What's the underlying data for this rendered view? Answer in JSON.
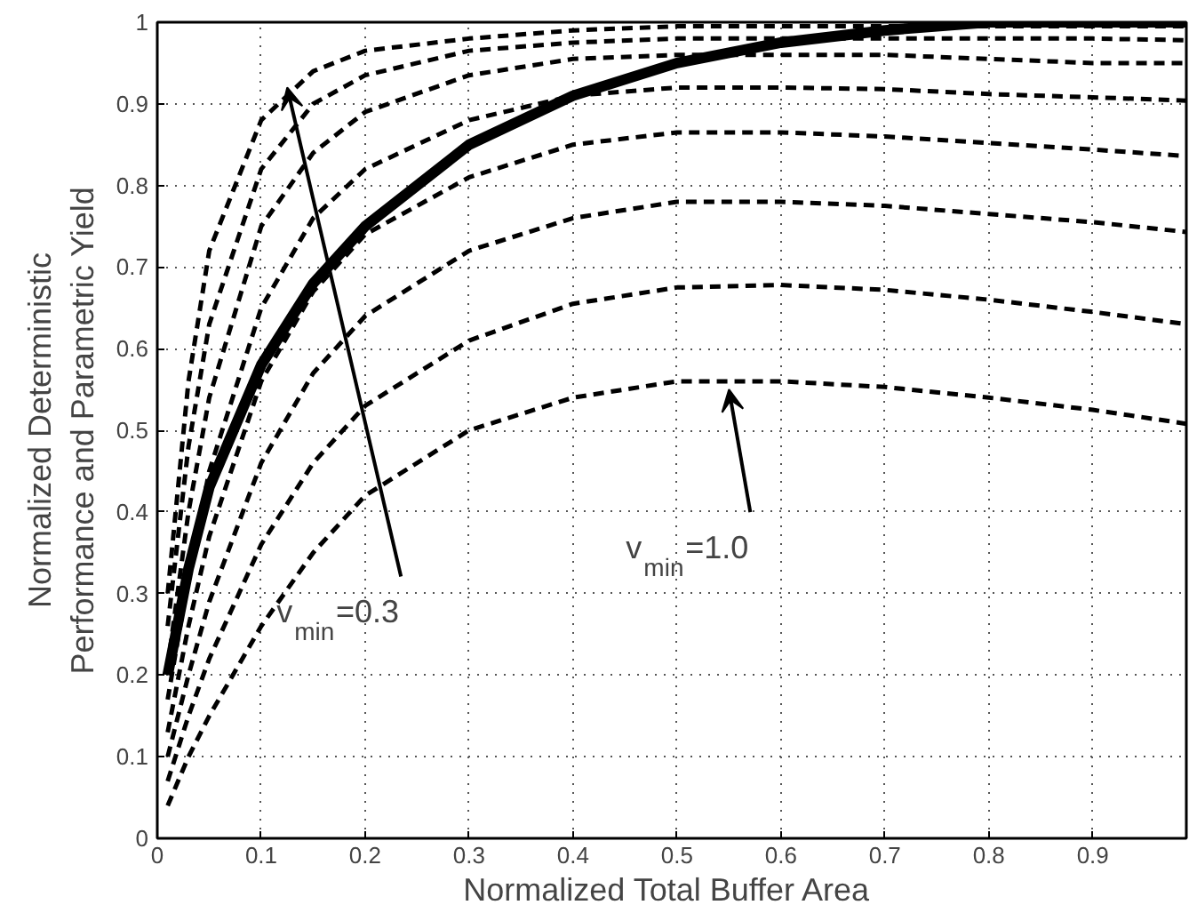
{
  "chart_data": {
    "type": "line",
    "xlabel": "Normalized  Total Buffer Area",
    "ylabel": "Normalized Deterministic\nPerformance and Parametric Yield",
    "x": [
      0.01,
      0.03,
      0.05,
      0.1,
      0.15,
      0.2,
      0.3,
      0.4,
      0.5,
      0.6,
      0.7,
      0.8,
      0.9,
      0.99
    ],
    "series": [
      {
        "color": "#000000",
        "line_style": "solid",
        "values": [
          0.2,
          0.33,
          0.43,
          0.58,
          0.68,
          0.75,
          0.85,
          0.91,
          0.95,
          0.975,
          0.99,
          1.0,
          1.0,
          1.0
        ]
      },
      {
        "color": "#000000",
        "line_style": "dashed",
        "values": [
          0.3,
          0.56,
          0.72,
          0.88,
          0.94,
          0.965,
          0.98,
          0.99,
          0.995,
          0.995,
          0.995,
          0.995,
          0.995,
          0.995
        ]
      },
      {
        "color": "#000000",
        "line_style": "dashed",
        "values": [
          0.26,
          0.48,
          0.63,
          0.82,
          0.9,
          0.935,
          0.965,
          0.975,
          0.98,
          0.98,
          0.98,
          0.98,
          0.98,
          0.978
        ]
      },
      {
        "color": "#000000",
        "line_style": "dashed",
        "values": [
          0.21,
          0.4,
          0.54,
          0.75,
          0.84,
          0.89,
          0.935,
          0.955,
          0.96,
          0.96,
          0.96,
          0.955,
          0.95,
          0.95
        ]
      },
      {
        "color": "#000000",
        "line_style": "dashed",
        "values": [
          0.17,
          0.32,
          0.45,
          0.65,
          0.76,
          0.82,
          0.88,
          0.91,
          0.92,
          0.92,
          0.918,
          0.912,
          0.908,
          0.904
        ]
      },
      {
        "color": "#000000",
        "line_style": "dashed",
        "values": [
          0.13,
          0.26,
          0.37,
          0.56,
          0.67,
          0.74,
          0.81,
          0.85,
          0.865,
          0.865,
          0.86,
          0.852,
          0.844,
          0.836
        ]
      },
      {
        "color": "#000000",
        "line_style": "dashed",
        "values": [
          0.1,
          0.2,
          0.29,
          0.46,
          0.57,
          0.64,
          0.72,
          0.76,
          0.78,
          0.78,
          0.775,
          0.765,
          0.755,
          0.743
        ]
      },
      {
        "color": "#000000",
        "line_style": "dashed",
        "values": [
          0.07,
          0.15,
          0.22,
          0.36,
          0.46,
          0.53,
          0.61,
          0.655,
          0.675,
          0.678,
          0.672,
          0.66,
          0.645,
          0.63
        ]
      },
      {
        "color": "#000000",
        "line_style": "dashed",
        "values": [
          0.04,
          0.1,
          0.15,
          0.26,
          0.35,
          0.42,
          0.5,
          0.54,
          0.56,
          0.56,
          0.553,
          0.54,
          0.525,
          0.508
        ]
      }
    ],
    "annotations": [
      {
        "text": "v$_{min}$=0.3",
        "x": 0.125,
        "y": 0.92
      },
      {
        "text": "v$_{min}$=1.0",
        "x": 0.55,
        "y": 0.55
      }
    ],
    "xlim": [
      0,
      0.99
    ],
    "ylim": [
      0,
      1
    ],
    "xticks": [
      0,
      0.1,
      0.2,
      0.3,
      0.4,
      0.5,
      0.6,
      0.7,
      0.8,
      0.9
    ],
    "yticks": [
      0,
      0.1,
      0.2,
      0.3,
      0.4,
      0.5,
      0.6,
      0.7,
      0.8,
      0.9,
      1
    ],
    "grid": true
  }
}
